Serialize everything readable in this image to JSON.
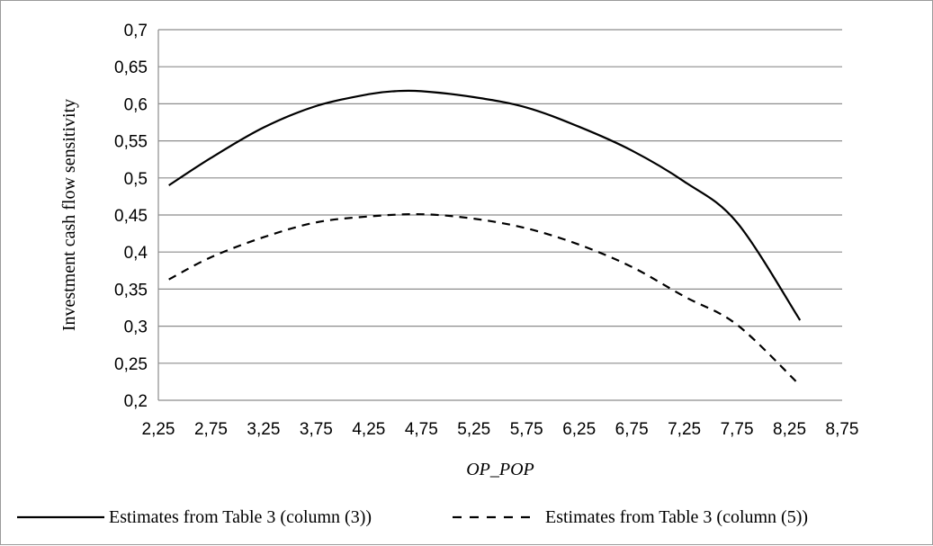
{
  "chart_data": {
    "type": "line",
    "title": "",
    "xlabel": "OP_POP",
    "ylabel": "Investment  cash flow sensitivity",
    "xlim": [
      2.25,
      8.75
    ],
    "ylim": [
      0.2,
      0.7
    ],
    "x_ticks": [
      "2,25",
      "2,75",
      "3,25",
      "3,75",
      "4,25",
      "4,75",
      "5,25",
      "5,75",
      "6,25",
      "6,75",
      "7,25",
      "7,75",
      "8,25",
      "8,75"
    ],
    "y_ticks": [
      "0,2",
      "0,25",
      "0,3",
      "0,35",
      "0,4",
      "0,45",
      "0,5",
      "0,55",
      "0,6",
      "0,65",
      "0,7"
    ],
    "grid": "horizontal",
    "legend_position": "bottom",
    "series": [
      {
        "name": "Estimates from Table 3 (column (3))",
        "style": "solid",
        "color": "#000000",
        "x": [
          2.35,
          2.75,
          3.25,
          3.75,
          4.25,
          4.5,
          4.75,
          5.25,
          5.75,
          6.25,
          6.75,
          7.25,
          7.75,
          8.35
        ],
        "y": [
          0.49,
          0.527,
          0.568,
          0.597,
          0.613,
          0.617,
          0.617,
          0.609,
          0.595,
          0.569,
          0.537,
          0.495,
          0.44,
          0.308
        ]
      },
      {
        "name": "Estimates from Table 3 (column (5))",
        "style": "dashed",
        "color": "#000000",
        "x": [
          2.35,
          2.75,
          3.25,
          3.75,
          4.25,
          4.75,
          5.25,
          5.75,
          6.25,
          6.75,
          7.25,
          7.75,
          8.35
        ],
        "y": [
          0.363,
          0.393,
          0.42,
          0.44,
          0.448,
          0.451,
          0.445,
          0.432,
          0.41,
          0.38,
          0.34,
          0.302,
          0.22
        ]
      }
    ]
  }
}
